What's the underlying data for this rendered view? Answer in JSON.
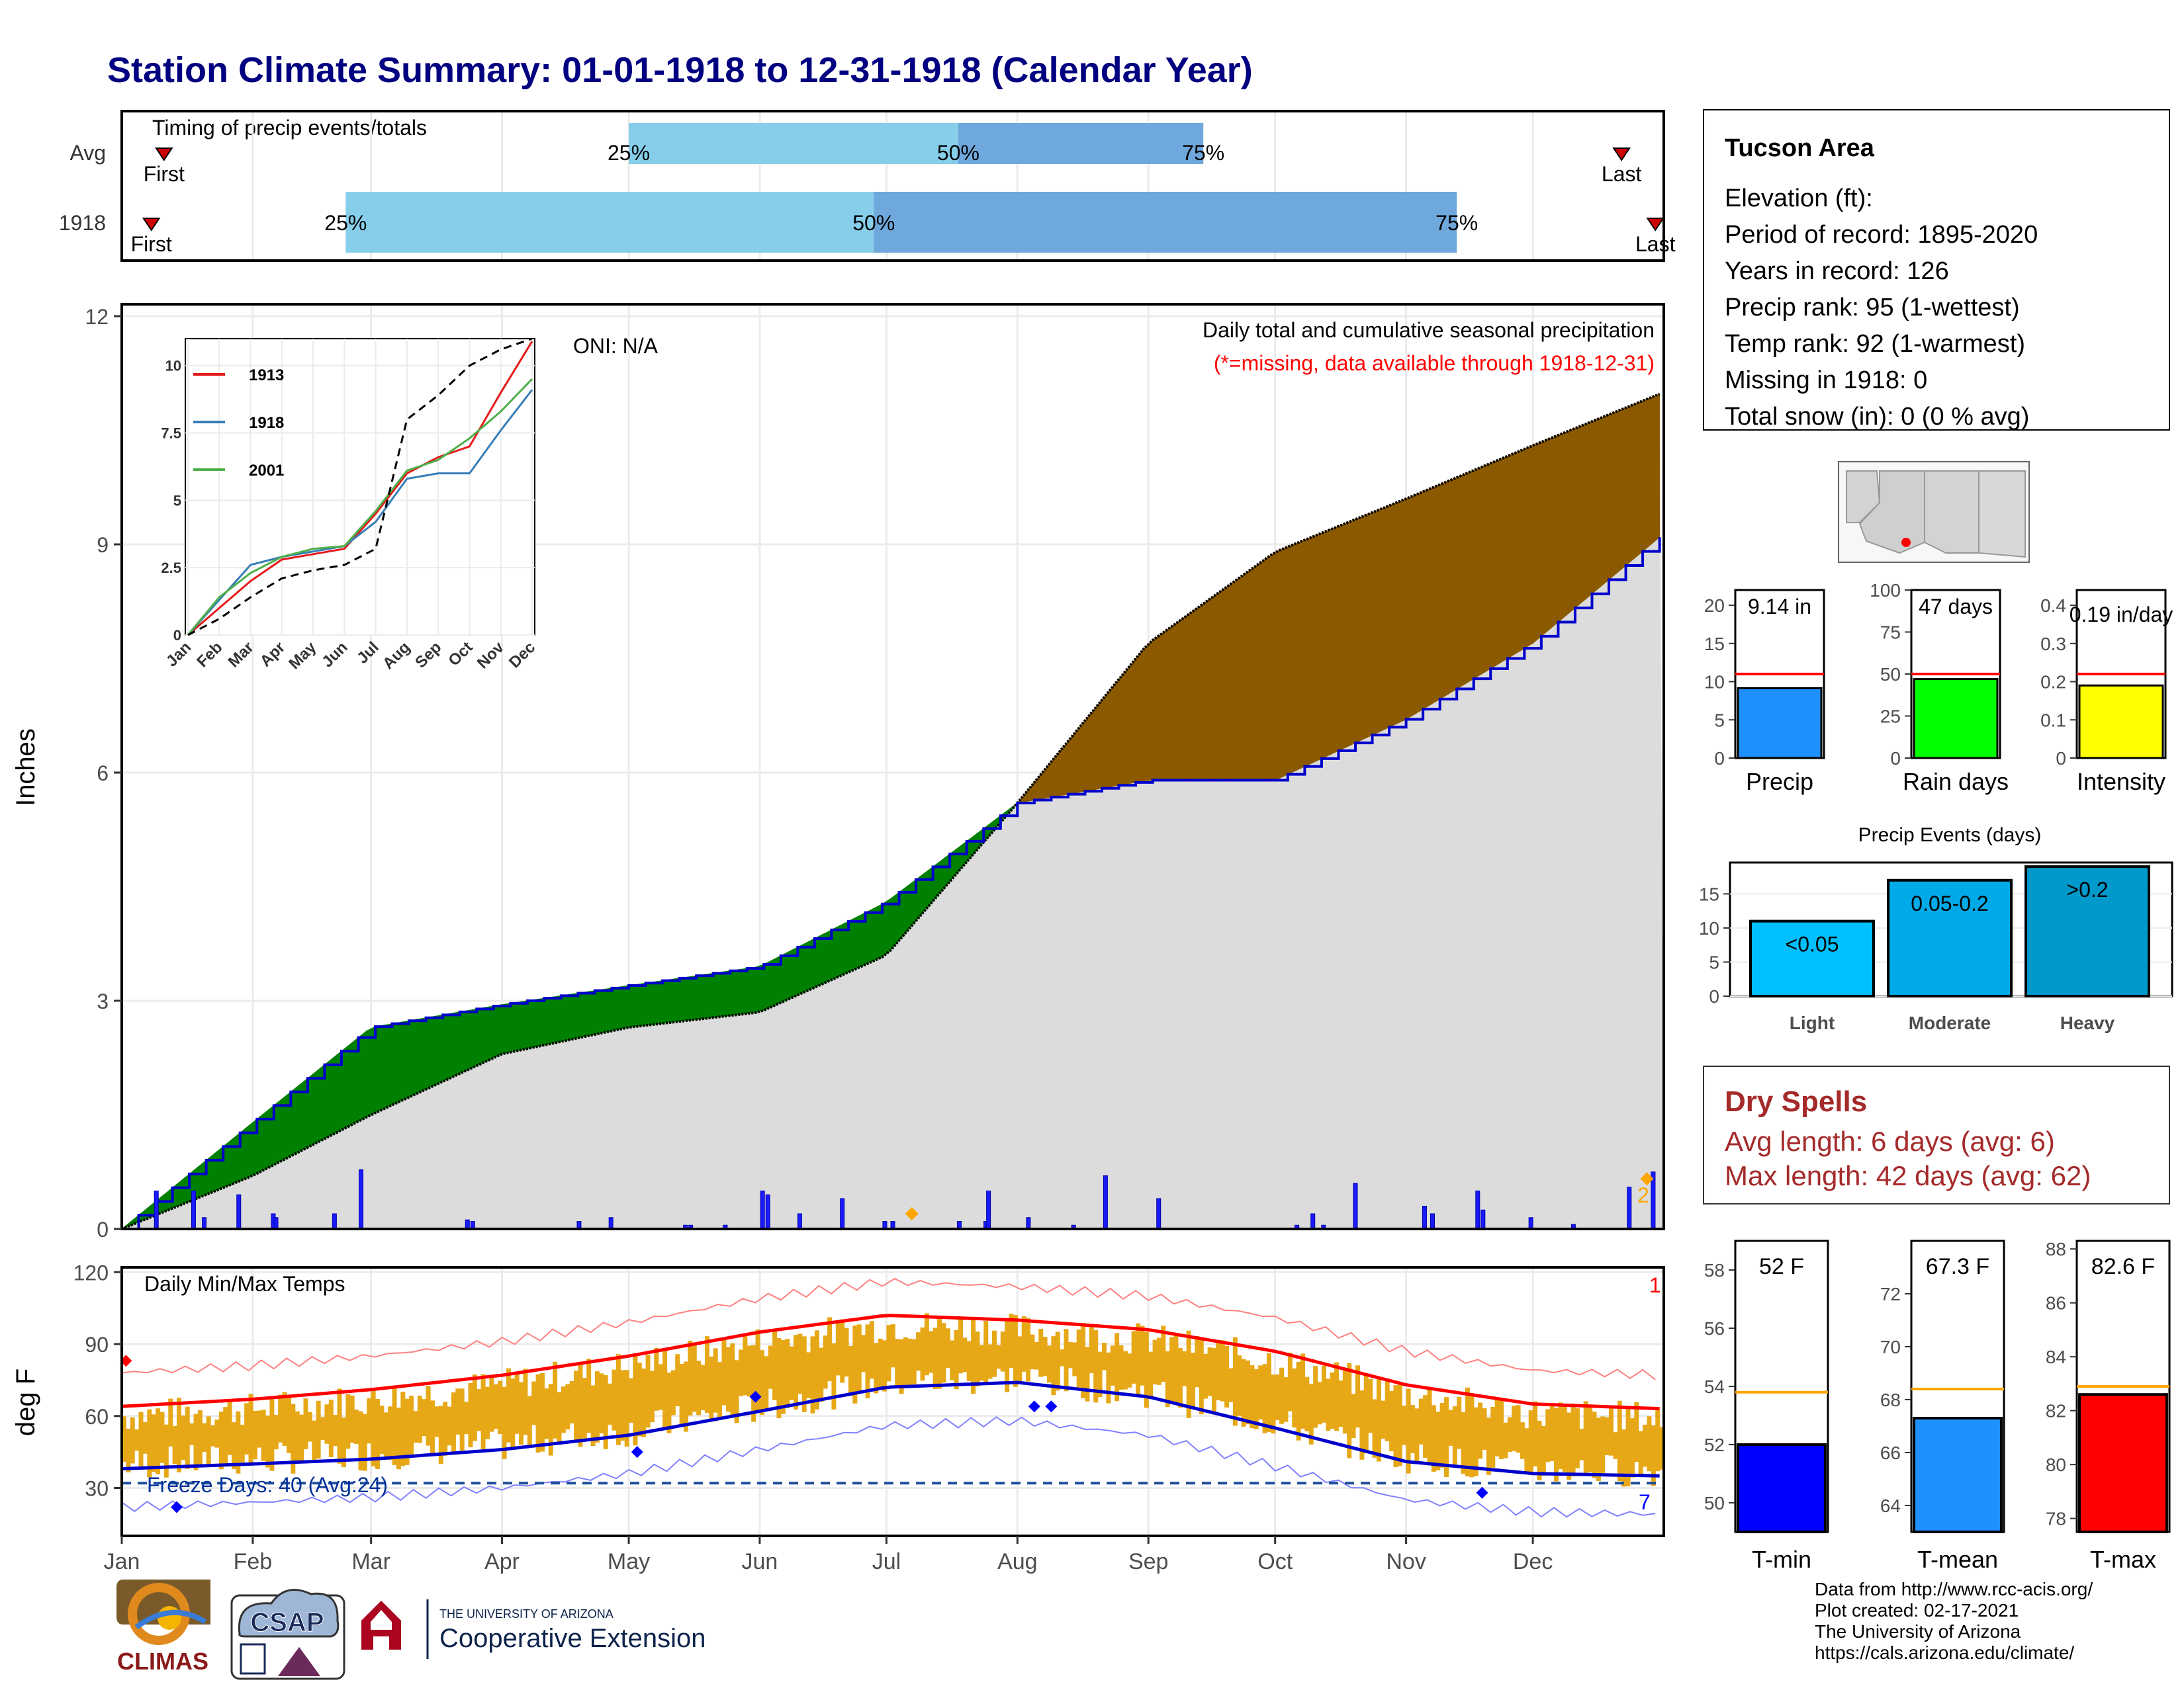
{
  "title": "Station Climate Summary: 01-01-1918 to 12-31-1918 (Calendar Year)",
  "months": [
    "Jan",
    "Feb",
    "Mar",
    "Apr",
    "May",
    "Jun",
    "Jul",
    "Aug",
    "Sep",
    "Oct",
    "Nov",
    "Dec"
  ],
  "timing": {
    "label": "Timing of precip events/totals",
    "rows": [
      {
        "name": "Avg",
        "first": "First",
        "last": "Last",
        "p25": "25%",
        "p50": "50%",
        "p75": "75%",
        "first_day": 10,
        "p25_day": 120,
        "p50_day": 198,
        "p75_day": 256,
        "last_day": 355
      },
      {
        "name": "1918",
        "first": "First",
        "last": "Last",
        "p25": "25%",
        "p50": "50%",
        "p75": "75%",
        "first_day": 7,
        "p25_day": 53,
        "p50_day": 178,
        "p75_day": 316,
        "last_day": 363
      }
    ]
  },
  "colors": {
    "title": "#000080",
    "light_blue": "#87ceeb",
    "mid_blue": "#6fa8dc",
    "brown": "#8b5a00",
    "green": "#008000",
    "daily_bar": "#1a1aff",
    "cum_line": "#0000cc",
    "temp_bar": "#e6a817",
    "tmax_line": "#ff0000",
    "tmin_line": "#0000cc",
    "dry_spell": "#a52a2a"
  },
  "main": {
    "ylabel": "Inches",
    "oni": "ONI: N/A",
    "desc1": "Daily total and cumulative seasonal precipitation",
    "desc2": "(*=missing, data available through 1918-12-31)",
    "missing_count": "2"
  },
  "inset": {
    "series_names": [
      "1913",
      "1918",
      "2001"
    ],
    "month_labels": [
      "Jan",
      "Feb",
      "Mar",
      "Apr",
      "May",
      "Jun",
      "Jul",
      "Aug",
      "Sep",
      "Oct",
      "Nov",
      "Dec"
    ]
  },
  "temps": {
    "ylabel": "deg F",
    "label": "Daily Min/Max Temps",
    "freeze": "Freeze Days: 40 (Avg:24)",
    "count_top": "1",
    "count_bottom": "7"
  },
  "station": {
    "name": "Tucson Area",
    "lines": [
      "Elevation (ft):",
      "Period of record: 1895-2020",
      "Years in record: 126",
      "Precip rank: 95 (1-wettest)",
      "Temp rank: 92 (1-warmest)",
      "Missing in 1918: 0",
      "Total snow (in): 0 (0 % avg)"
    ]
  },
  "mini_bars": [
    {
      "label": "Precip",
      "value_text": "9.14 in",
      "value": 9.14,
      "avg": 11.0,
      "ymax": 22,
      "ticks": [
        0,
        5,
        10,
        15,
        20
      ],
      "color": "#1e90ff"
    },
    {
      "label": "Rain days",
      "value_text": "47 days",
      "value": 47,
      "avg": 50,
      "ymax": 100,
      "ticks": [
        0,
        25,
        50,
        75,
        100
      ],
      "color": "#00ff00"
    },
    {
      "label": "Intensity",
      "value_text": "0.19 in/day",
      "value": 0.19,
      "avg": 0.22,
      "ymax": 0.44,
      "ticks": [
        0.0,
        0.1,
        0.2,
        0.3,
        0.4
      ],
      "color": "#ffff00"
    }
  ],
  "events": {
    "title": "Precip Events (days)",
    "bars": [
      {
        "label": "Light",
        "value_text": "<0.05",
        "value": 11,
        "color": "#00bfff"
      },
      {
        "label": "Moderate",
        "value_text": "0.05-0.2",
        "value": 17,
        "color": "#00aae8"
      },
      {
        "label": "Heavy",
        "value_text": ">0.2",
        "value": 19,
        "color": "#0099cc"
      }
    ]
  },
  "dry_spells": {
    "title": "Dry Spells",
    "avg": "Avg length: 6 days (avg: 6)",
    "max": "Max length: 42 days (avg: 62)"
  },
  "temp_bars": [
    {
      "label": "T-min",
      "value_text": "52 F",
      "value": 52,
      "avg": 53.8,
      "ymin": 49,
      "ymax": 59,
      "ticks": [
        50,
        52,
        54,
        56,
        58
      ],
      "color": "#0000ff"
    },
    {
      "label": "T-mean",
      "value_text": "67.3 F",
      "value": 67.3,
      "avg": 68.4,
      "ymin": 63,
      "ymax": 74,
      "ticks": [
        64,
        66,
        68,
        70,
        72
      ],
      "color": "#1e90ff"
    },
    {
      "label": "T-max",
      "value_text": "82.6 F",
      "value": 82.6,
      "avg": 82.9,
      "ymin": 77.5,
      "ymax": 88.3,
      "ticks": [
        78,
        80,
        82,
        84,
        86,
        88
      ],
      "color": "#ff0000"
    }
  ],
  "credits": [
    "Data from http://www.rcc-acis.org/",
    "Plot created: 02-17-2021",
    "The University of Arizona",
    "https://cals.arizona.edu/climate/"
  ],
  "logos": {
    "climas": "CLIMAS",
    "csap": "CSAP",
    "ua_line1": "THE UNIVERSITY OF ARIZONA",
    "ua_line2": "Cooperative Extension"
  },
  "chart_data": [
    {
      "type": "line",
      "title": "Daily total and cumulative seasonal precipitation",
      "ylabel": "Inches",
      "ylim": [
        0,
        12
      ],
      "y_ticks": [
        0,
        3,
        6,
        9,
        12
      ],
      "x": [
        "Jan 1",
        "Feb 1",
        "Mar 1",
        "Apr 1",
        "May 1",
        "Jun 1",
        "Jul 1",
        "Aug 1",
        "Sep 1",
        "Oct 1",
        "Nov 1",
        "Dec 1",
        "Dec 31"
      ],
      "series": [
        {
          "name": "1918",
          "values": [
            0.0,
            1.4,
            2.65,
            2.95,
            3.2,
            3.45,
            4.3,
            5.6,
            5.9,
            5.9,
            6.7,
            7.7,
            9.14
          ]
        },
        {
          "name": "",
          "values": [
            0.0,
            0.7,
            1.5,
            2.3,
            2.65,
            2.85,
            3.6,
            5.6,
            7.7,
            8.9,
            9.6,
            10.3,
            11.0
          ]
        }
      ],
      "daily_precip": [
        {
          "day": 13,
          "value": 0.5
        },
        {
          "day": 27,
          "value": 0.5
        },
        {
          "day": 31,
          "value": 0.15
        },
        {
          "day": 44,
          "value": 0.45
        },
        {
          "day": 57,
          "value": 0.2
        },
        {
          "day": 58,
          "value": 0.15
        },
        {
          "day": 80,
          "value": 0.2
        },
        {
          "day": 90,
          "value": 0.78
        },
        {
          "day": 130,
          "value": 0.12
        },
        {
          "day": 132,
          "value": 0.1
        },
        {
          "day": 172,
          "value": 0.1
        },
        {
          "day": 184,
          "value": 0.15
        },
        {
          "day": 212,
          "value": 0.05
        },
        {
          "day": 214,
          "value": 0.05
        },
        {
          "day": 227,
          "value": 0.05
        },
        {
          "day": 241,
          "value": 0.5
        },
        {
          "day": 243,
          "value": 0.45
        },
        {
          "day": 255,
          "value": 0.2
        },
        {
          "day": 271,
          "value": 0.4
        },
        {
          "day": 287,
          "value": 0.1
        },
        {
          "day": 290,
          "value": 0.1
        },
        {
          "day": 315,
          "value": 0.1
        },
        {
          "day": 325,
          "value": 0.1
        },
        {
          "day": 326,
          "value": 0.5
        },
        {
          "day": 341,
          "value": 0.15
        },
        {
          "day": 358,
          "value": 0.05
        },
        {
          "day": 370,
          "value": 0.7
        },
        {
          "day": 390,
          "value": 0.4
        },
        {
          "day": 442,
          "value": 0.05
        },
        {
          "day": 448,
          "value": 0.2
        },
        {
          "day": 452,
          "value": 0.05
        },
        {
          "day": 464,
          "value": 0.6
        },
        {
          "day": 490,
          "value": 0.3
        },
        {
          "day": 493,
          "value": 0.2
        },
        {
          "day": 510,
          "value": 0.5
        },
        {
          "day": 512,
          "value": 0.25
        },
        {
          "day": 530,
          "value": 0.15
        },
        {
          "day": 546,
          "value": 0.06
        },
        {
          "day": 567,
          "value": 0.55
        },
        {
          "day": 576,
          "value": 0.75
        }
      ]
    },
    {
      "type": "line",
      "ylim": [
        0,
        11
      ],
      "y_ticks": [
        0.0,
        2.5,
        5.0,
        7.5,
        10.0
      ],
      "categories": [
        "Jan",
        "Feb",
        "Mar",
        "Apr",
        "May",
        "Jun",
        "Jul",
        "Aug",
        "Sep",
        "Oct",
        "Nov",
        "Dec"
      ],
      "series": [
        {
          "name": "1913",
          "values": [
            0.0,
            1.0,
            2.0,
            2.8,
            3.0,
            3.2,
            4.5,
            6.0,
            6.6,
            7.0,
            9.0,
            10.9
          ]
        },
        {
          "name": "1918",
          "values": [
            0.0,
            1.3,
            2.6,
            2.9,
            3.1,
            3.3,
            4.2,
            5.8,
            6.0,
            6.0,
            7.6,
            9.1
          ]
        },
        {
          "name": "2001",
          "values": [
            0.0,
            1.4,
            2.3,
            2.9,
            3.2,
            3.3,
            4.6,
            6.1,
            6.5,
            7.3,
            8.3,
            9.5
          ]
        },
        {
          "name": "",
          "values": [
            0.0,
            0.6,
            1.4,
            2.1,
            2.4,
            2.6,
            3.2,
            8.0,
            8.9,
            10.0,
            10.6,
            11.0
          ]
        }
      ]
    },
    {
      "type": "line",
      "title": "Daily Min/Max Temps",
      "ylabel": "deg F",
      "ylim": [
        10,
        122
      ],
      "y_ticks": [
        30,
        60,
        90,
        120
      ],
      "categories": [
        "Jan",
        "Feb",
        "Mar",
        "Apr",
        "May",
        "Jun",
        "Jul",
        "Aug",
        "Sep",
        "Oct",
        "Nov",
        "Dec",
        "Jan"
      ],
      "series": [
        {
          "name": "",
          "values": [
            64,
            67,
            71,
            77,
            85,
            95,
            102,
            100,
            96,
            87,
            73,
            65,
            63
          ]
        },
        {
          "name": "",
          "values": [
            38,
            40,
            42,
            46,
            52,
            62,
            72,
            74,
            68,
            55,
            41,
            36,
            35
          ]
        }
      ],
      "freeze_line": 32
    }
  ]
}
